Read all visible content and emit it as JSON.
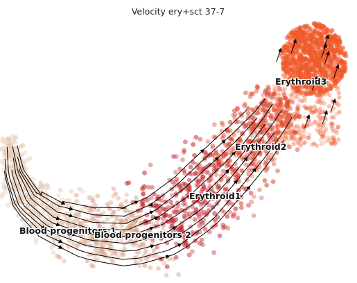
{
  "title": "Velocity ery+sct 37-7",
  "chart_data": {
    "type": "scatter",
    "title": "Velocity ery+sct 37-7",
    "xlabel": "",
    "ylabel": "",
    "axes_visible": false,
    "grid": false,
    "overlay": "velocity-stream-arrows",
    "clusters": [
      {
        "name": "Blood progenitors 1",
        "color": "#e8cdb9"
      },
      {
        "name": "Blood progenitors 2",
        "color": "#d9a58d"
      },
      {
        "name": "Erythroid1",
        "color": "#c72a32"
      },
      {
        "name": "Erythroid2",
        "color": "#dd4a36"
      },
      {
        "name": "Erythroid3",
        "color": "#f05a2c"
      }
    ],
    "colors": {
      "stream": "#000000",
      "background": "#ffffff"
    }
  }
}
